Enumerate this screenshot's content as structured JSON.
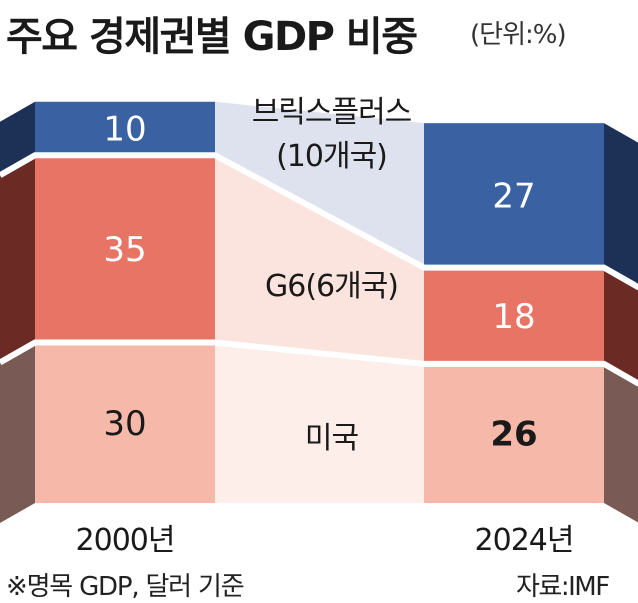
{
  "header": {
    "title": "주요 경제권별 GDP 비중",
    "unit": "(단위:%)"
  },
  "footer": {
    "note": "※명목 GDP, 달러 기준",
    "source": "자료:IMF"
  },
  "colors": {
    "brics": "#3a62a2",
    "g6": "#e87466",
    "us": "#f6b9a9",
    "brics_band": "#dde2ee",
    "g6_band": "#fbe3de",
    "us_band": "#fdeeea"
  },
  "chart_data": {
    "type": "bar",
    "stacked": true,
    "categories": [
      "2000년",
      "2024년"
    ],
    "series": [
      {
        "name": "브릭스플러스 (10개국)",
        "values": [
          10,
          27
        ]
      },
      {
        "name": "G6(6개국)",
        "values": [
          35,
          18
        ]
      },
      {
        "name": "미국",
        "values": [
          30,
          26
        ]
      }
    ],
    "group_labels": {
      "brics_line1": "브릭스플러스",
      "brics_line2": "(10개국)",
      "g6": "G6(6개국)",
      "us": "미국"
    },
    "ylabel": "",
    "xlabel": ""
  }
}
